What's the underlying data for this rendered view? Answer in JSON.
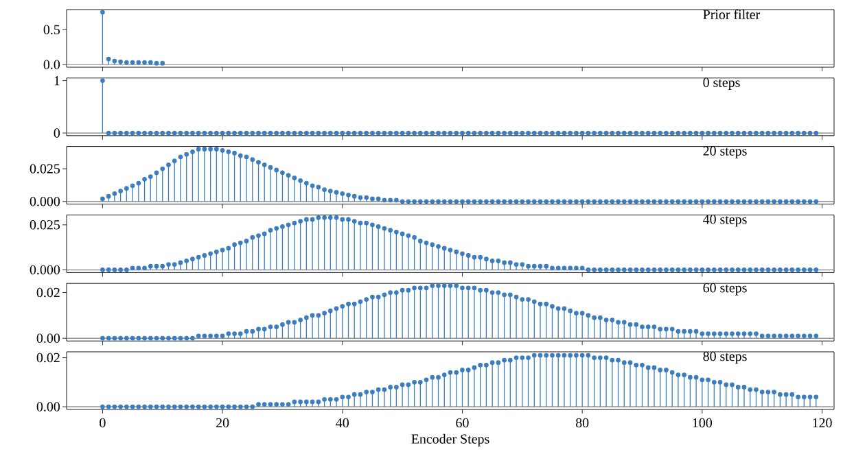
{
  "chart_data": [
    {
      "type": "lollipop",
      "title": "Prior filter",
      "x": [
        0,
        1,
        2,
        3,
        4,
        5,
        6,
        7,
        8,
        9,
        10
      ],
      "series": [
        {
          "color": "#3b7dbf",
          "values": [
            0.75,
            0.08,
            0.05,
            0.04,
            0.03,
            0.03,
            0.03,
            0.03,
            0.03,
            0.02,
            0.02
          ]
        }
      ],
      "ref_lines": [
        {
          "axis": "y",
          "value": 0,
          "color": "#969696"
        }
      ],
      "xlim": [
        -6,
        122
      ],
      "xticks": [
        0,
        20,
        40,
        60,
        80,
        100,
        120
      ],
      "ylim": [
        -0.0375,
        0.7875
      ],
      "yticks": [
        {
          "value": 0,
          "label": "0.0"
        },
        {
          "value": 0.5,
          "label": "0.5"
        }
      ],
      "tick_labels": "y",
      "marker": "circle"
    },
    {
      "type": "lollipop",
      "title": "0 steps",
      "x": [
        0,
        1,
        2,
        3,
        4,
        5,
        6,
        7,
        8,
        9,
        10,
        11,
        12,
        13,
        14,
        15,
        16,
        17,
        18,
        19,
        20,
        21,
        22,
        23,
        24,
        25,
        26,
        27,
        28,
        29,
        30,
        31,
        32,
        33,
        34,
        35,
        36,
        37,
        38,
        39,
        40,
        41,
        42,
        43,
        44,
        45,
        46,
        47,
        48,
        49,
        50,
        51,
        52,
        53,
        54,
        55,
        56,
        57,
        58,
        59,
        60,
        61,
        62,
        63,
        64,
        65,
        66,
        67,
        68,
        69,
        70,
        71,
        72,
        73,
        74,
        75,
        76,
        77,
        78,
        79,
        80,
        81,
        82,
        83,
        84,
        85,
        86,
        87,
        88,
        89,
        90,
        91,
        92,
        93,
        94,
        95,
        96,
        97,
        98,
        99,
        100,
        101,
        102,
        103,
        104,
        105,
        106,
        107,
        108,
        109,
        110,
        111,
        112,
        113,
        114,
        115,
        116,
        117,
        118,
        119
      ],
      "series": [
        {
          "color": "#3b7dbf",
          "values": [
            1,
            0,
            0,
            0,
            0,
            0,
            0,
            0,
            0,
            0,
            0,
            0,
            0,
            0,
            0,
            0,
            0,
            0,
            0,
            0,
            0,
            0,
            0,
            0,
            0,
            0,
            0,
            0,
            0,
            0,
            0,
            0,
            0,
            0,
            0,
            0,
            0,
            0,
            0,
            0,
            0,
            0,
            0,
            0,
            0,
            0,
            0,
            0,
            0,
            0,
            0,
            0,
            0,
            0,
            0,
            0,
            0,
            0,
            0,
            0,
            0,
            0,
            0,
            0,
            0,
            0,
            0,
            0,
            0,
            0,
            0,
            0,
            0,
            0,
            0,
            0,
            0,
            0,
            0,
            0,
            0,
            0,
            0,
            0,
            0,
            0,
            0,
            0,
            0,
            0,
            0,
            0,
            0,
            0,
            0,
            0,
            0,
            0,
            0,
            0,
            0,
            0,
            0,
            0,
            0,
            0,
            0,
            0,
            0,
            0,
            0,
            0,
            0,
            0,
            0,
            0,
            0,
            0,
            0,
            0
          ]
        }
      ],
      "ref_lines": [
        {
          "axis": "y",
          "value": 0,
          "color": "#969696"
        }
      ],
      "xlim": [
        -6,
        122
      ],
      "xticks": [
        0,
        20,
        40,
        60,
        80,
        100,
        120
      ],
      "ylim": [
        -0.05,
        1.05
      ],
      "yticks": [
        0,
        1
      ],
      "tick_labels": "y",
      "marker": "circle"
    },
    {
      "type": "lollipop",
      "title": "20 steps",
      "x": [
        0,
        1,
        2,
        3,
        4,
        5,
        6,
        7,
        8,
        9,
        10,
        11,
        12,
        13,
        14,
        15,
        16,
        17,
        18,
        19,
        20,
        21,
        22,
        23,
        24,
        25,
        26,
        27,
        28,
        29,
        30,
        31,
        32,
        33,
        34,
        35,
        36,
        37,
        38,
        39,
        40,
        41,
        42,
        43,
        44,
        45,
        46,
        47,
        48,
        49,
        50,
        51,
        52,
        53,
        54,
        55,
        56,
        57,
        58,
        59,
        60,
        61,
        62,
        63,
        64,
        65,
        66,
        67,
        68,
        69,
        70,
        71,
        72,
        73,
        74,
        75,
        76,
        77,
        78,
        79,
        80,
        81,
        82,
        83,
        84,
        85,
        86,
        87,
        88,
        89,
        90,
        91,
        92,
        93,
        94,
        95,
        96,
        97,
        98,
        99,
        100,
        101,
        102,
        103,
        104,
        105,
        106,
        107,
        108,
        109,
        110,
        111,
        112,
        113,
        114,
        115,
        116,
        117,
        118,
        119
      ],
      "series": [
        {
          "color": "#3b7dbf",
          "values": [
            0.002,
            0.004,
            0.006,
            0.008,
            0.01,
            0.012,
            0.014,
            0.017,
            0.019,
            0.022,
            0.025,
            0.028,
            0.031,
            0.034,
            0.036,
            0.038,
            0.04,
            0.04,
            0.04,
            0.04,
            0.039,
            0.038,
            0.037,
            0.035,
            0.034,
            0.032,
            0.03,
            0.028,
            0.026,
            0.024,
            0.022,
            0.02,
            0.018,
            0.016,
            0.014,
            0.012,
            0.011,
            0.009,
            0.008,
            0.007,
            0.006,
            0.005,
            0.004,
            0.003,
            0.003,
            0.002,
            0.002,
            0.001,
            0.001,
            0.001,
            0,
            0,
            0,
            0,
            0,
            0,
            0,
            0,
            0,
            0,
            0,
            0,
            0,
            0,
            0,
            0,
            0,
            0,
            0,
            0,
            0,
            0,
            0,
            0,
            0,
            0,
            0,
            0,
            0,
            0,
            0,
            0,
            0,
            0,
            0,
            0,
            0,
            0,
            0,
            0,
            0,
            0,
            0,
            0,
            0,
            0,
            0,
            0,
            0,
            0,
            0,
            0,
            0,
            0,
            0,
            0,
            0,
            0,
            0,
            0,
            0,
            0,
            0,
            0,
            0,
            0,
            0,
            0,
            0,
            0
          ]
        }
      ],
      "ref_lines": [
        {
          "axis": "y",
          "value": 0,
          "color": "#969696"
        }
      ],
      "xlim": [
        -6,
        122
      ],
      "xticks": [
        0,
        20,
        40,
        60,
        80,
        100,
        120
      ],
      "ylim": [
        -0.002,
        0.042
      ],
      "yticks": [
        {
          "value": 0,
          "label": "0.000"
        },
        {
          "value": 0.025,
          "label": "0.025"
        }
      ],
      "tick_labels": "y",
      "marker": "circle"
    },
    {
      "type": "lollipop",
      "title": "40 steps",
      "x": [
        0,
        1,
        2,
        3,
        4,
        5,
        6,
        7,
        8,
        9,
        10,
        11,
        12,
        13,
        14,
        15,
        16,
        17,
        18,
        19,
        20,
        21,
        22,
        23,
        24,
        25,
        26,
        27,
        28,
        29,
        30,
        31,
        32,
        33,
        34,
        35,
        36,
        37,
        38,
        39,
        40,
        41,
        42,
        43,
        44,
        45,
        46,
        47,
        48,
        49,
        50,
        51,
        52,
        53,
        54,
        55,
        56,
        57,
        58,
        59,
        60,
        61,
        62,
        63,
        64,
        65,
        66,
        67,
        68,
        69,
        70,
        71,
        72,
        73,
        74,
        75,
        76,
        77,
        78,
        79,
        80,
        81,
        82,
        83,
        84,
        85,
        86,
        87,
        88,
        89,
        90,
        91,
        92,
        93,
        94,
        95,
        96,
        97,
        98,
        99,
        100,
        101,
        102,
        103,
        104,
        105,
        106,
        107,
        108,
        109,
        110,
        111,
        112,
        113,
        114,
        115,
        116,
        117,
        118,
        119
      ],
      "series": [
        {
          "color": "#3b7dbf",
          "values": [
            0,
            0,
            0,
            0,
            0,
            0.001,
            0.001,
            0.001,
            0.002,
            0.002,
            0.002,
            0.003,
            0.003,
            0.004,
            0.005,
            0.006,
            0.007,
            0.008,
            0.009,
            0.01,
            0.011,
            0.012,
            0.014,
            0.015,
            0.016,
            0.018,
            0.019,
            0.02,
            0.022,
            0.023,
            0.024,
            0.025,
            0.026,
            0.027,
            0.028,
            0.028,
            0.029,
            0.029,
            0.029,
            0.029,
            0.028,
            0.028,
            0.027,
            0.026,
            0.026,
            0.025,
            0.024,
            0.023,
            0.022,
            0.021,
            0.02,
            0.019,
            0.018,
            0.016,
            0.015,
            0.014,
            0.013,
            0.012,
            0.011,
            0.01,
            0.009,
            0.008,
            0.007,
            0.007,
            0.006,
            0.005,
            0.005,
            0.004,
            0.004,
            0.003,
            0.003,
            0.002,
            0.002,
            0.002,
            0.002,
            0.001,
            0.001,
            0.001,
            0.001,
            0.001,
            0.001,
            0,
            0,
            0,
            0,
            0,
            0,
            0,
            0,
            0,
            0,
            0,
            0,
            0,
            0,
            0,
            0,
            0,
            0,
            0,
            0,
            0,
            0,
            0,
            0,
            0,
            0,
            0,
            0,
            0,
            0,
            0,
            0,
            0,
            0,
            0,
            0,
            0,
            0,
            0
          ]
        }
      ],
      "ref_lines": [
        {
          "axis": "y",
          "value": 0,
          "color": "#969696"
        }
      ],
      "xlim": [
        -6,
        122
      ],
      "xticks": [
        0,
        20,
        40,
        60,
        80,
        100,
        120
      ],
      "ylim": [
        -0.0015,
        0.0305
      ],
      "yticks": [
        {
          "value": 0,
          "label": "0.000"
        },
        {
          "value": 0.025,
          "label": "0.025"
        }
      ],
      "tick_labels": "y",
      "marker": "circle"
    },
    {
      "type": "lollipop",
      "title": "60 steps",
      "x": [
        0,
        1,
        2,
        3,
        4,
        5,
        6,
        7,
        8,
        9,
        10,
        11,
        12,
        13,
        14,
        15,
        16,
        17,
        18,
        19,
        20,
        21,
        22,
        23,
        24,
        25,
        26,
        27,
        28,
        29,
        30,
        31,
        32,
        33,
        34,
        35,
        36,
        37,
        38,
        39,
        40,
        41,
        42,
        43,
        44,
        45,
        46,
        47,
        48,
        49,
        50,
        51,
        52,
        53,
        54,
        55,
        56,
        57,
        58,
        59,
        60,
        61,
        62,
        63,
        64,
        65,
        66,
        67,
        68,
        69,
        70,
        71,
        72,
        73,
        74,
        75,
        76,
        77,
        78,
        79,
        80,
        81,
        82,
        83,
        84,
        85,
        86,
        87,
        88,
        89,
        90,
        91,
        92,
        93,
        94,
        95,
        96,
        97,
        98,
        99,
        100,
        101,
        102,
        103,
        104,
        105,
        106,
        107,
        108,
        109,
        110,
        111,
        112,
        113,
        114,
        115,
        116,
        117,
        118,
        119
      ],
      "series": [
        {
          "color": "#3b7dbf",
          "values": [
            0,
            0,
            0,
            0,
            0,
            0,
            0,
            0,
            0,
            0,
            0,
            0,
            0,
            0,
            0,
            0,
            0.001,
            0.001,
            0.001,
            0.001,
            0.001,
            0.002,
            0.002,
            0.002,
            0.003,
            0.003,
            0.004,
            0.004,
            0.005,
            0.005,
            0.006,
            0.007,
            0.007,
            0.008,
            0.009,
            0.01,
            0.01,
            0.011,
            0.012,
            0.013,
            0.014,
            0.015,
            0.015,
            0.016,
            0.017,
            0.018,
            0.018,
            0.019,
            0.02,
            0.02,
            0.021,
            0.021,
            0.022,
            0.022,
            0.022,
            0.023,
            0.023,
            0.023,
            0.023,
            0.023,
            0.022,
            0.022,
            0.022,
            0.021,
            0.021,
            0.02,
            0.02,
            0.019,
            0.019,
            0.018,
            0.017,
            0.017,
            0.016,
            0.015,
            0.015,
            0.014,
            0.013,
            0.013,
            0.012,
            0.011,
            0.011,
            0.01,
            0.009,
            0.009,
            0.008,
            0.008,
            0.007,
            0.007,
            0.006,
            0.006,
            0.005,
            0.005,
            0.005,
            0.004,
            0.004,
            0.004,
            0.003,
            0.003,
            0.003,
            0.003,
            0.002,
            0.002,
            0.002,
            0.002,
            0.002,
            0.002,
            0.002,
            0.002,
            0.002,
            0.002,
            0.001,
            0.001,
            0.001,
            0.001,
            0.001,
            0.001,
            0.001,
            0.001,
            0.001,
            0.001
          ]
        }
      ],
      "ref_lines": [
        {
          "axis": "y",
          "value": 0,
          "color": "#969696"
        }
      ],
      "xlim": [
        -6,
        122
      ],
      "xticks": [
        0,
        20,
        40,
        60,
        80,
        100,
        120
      ],
      "ylim": [
        -0.0012,
        0.024
      ],
      "yticks": [
        {
          "value": 0,
          "label": "0.00"
        },
        {
          "value": 0.02,
          "label": "0.02"
        }
      ],
      "tick_labels": "y",
      "marker": "circle"
    },
    {
      "type": "lollipop",
      "title": "80 steps",
      "xlabel": "Encoder Steps",
      "x": [
        0,
        1,
        2,
        3,
        4,
        5,
        6,
        7,
        8,
        9,
        10,
        11,
        12,
        13,
        14,
        15,
        16,
        17,
        18,
        19,
        20,
        21,
        22,
        23,
        24,
        25,
        26,
        27,
        28,
        29,
        30,
        31,
        32,
        33,
        34,
        35,
        36,
        37,
        38,
        39,
        40,
        41,
        42,
        43,
        44,
        45,
        46,
        47,
        48,
        49,
        50,
        51,
        52,
        53,
        54,
        55,
        56,
        57,
        58,
        59,
        60,
        61,
        62,
        63,
        64,
        65,
        66,
        67,
        68,
        69,
        70,
        71,
        72,
        73,
        74,
        75,
        76,
        77,
        78,
        79,
        80,
        81,
        82,
        83,
        84,
        85,
        86,
        87,
        88,
        89,
        90,
        91,
        92,
        93,
        94,
        95,
        96,
        97,
        98,
        99,
        100,
        101,
        102,
        103,
        104,
        105,
        106,
        107,
        108,
        109,
        110,
        111,
        112,
        113,
        114,
        115,
        116,
        117,
        118,
        119
      ],
      "series": [
        {
          "color": "#3b7dbf",
          "values": [
            0,
            0,
            0,
            0,
            0,
            0,
            0,
            0,
            0,
            0,
            0,
            0,
            0,
            0,
            0,
            0,
            0,
            0,
            0,
            0,
            0,
            0,
            0,
            0,
            0,
            0,
            0.001,
            0.001,
            0.001,
            0.001,
            0.001,
            0.001,
            0.002,
            0.002,
            0.002,
            0.002,
            0.002,
            0.003,
            0.003,
            0.003,
            0.004,
            0.004,
            0.005,
            0.005,
            0.006,
            0.006,
            0.007,
            0.007,
            0.008,
            0.008,
            0.009,
            0.009,
            0.01,
            0.01,
            0.011,
            0.012,
            0.012,
            0.013,
            0.014,
            0.014,
            0.015,
            0.015,
            0.016,
            0.017,
            0.017,
            0.018,
            0.018,
            0.019,
            0.019,
            0.02,
            0.02,
            0.02,
            0.021,
            0.021,
            0.021,
            0.021,
            0.021,
            0.021,
            0.021,
            0.021,
            0.021,
            0.021,
            0.02,
            0.02,
            0.02,
            0.019,
            0.019,
            0.018,
            0.018,
            0.017,
            0.017,
            0.016,
            0.016,
            0.015,
            0.015,
            0.014,
            0.013,
            0.013,
            0.012,
            0.012,
            0.011,
            0.011,
            0.01,
            0.01,
            0.009,
            0.009,
            0.008,
            0.008,
            0.007,
            0.007,
            0.006,
            0.006,
            0.006,
            0.005,
            0.005,
            0.005,
            0.004,
            0.004,
            0.004,
            0.004
          ]
        }
      ],
      "ref_lines": [
        {
          "axis": "y",
          "value": 0,
          "color": "#969696"
        }
      ],
      "xlim": [
        -6,
        122
      ],
      "xticks": [
        0,
        20,
        40,
        60,
        80,
        100,
        120
      ],
      "ylim": [
        -0.0011,
        0.0224
      ],
      "yticks": [
        {
          "value": 0,
          "label": "0.00"
        },
        {
          "value": 0.02,
          "label": "0.02"
        }
      ],
      "marker": "circle"
    }
  ]
}
